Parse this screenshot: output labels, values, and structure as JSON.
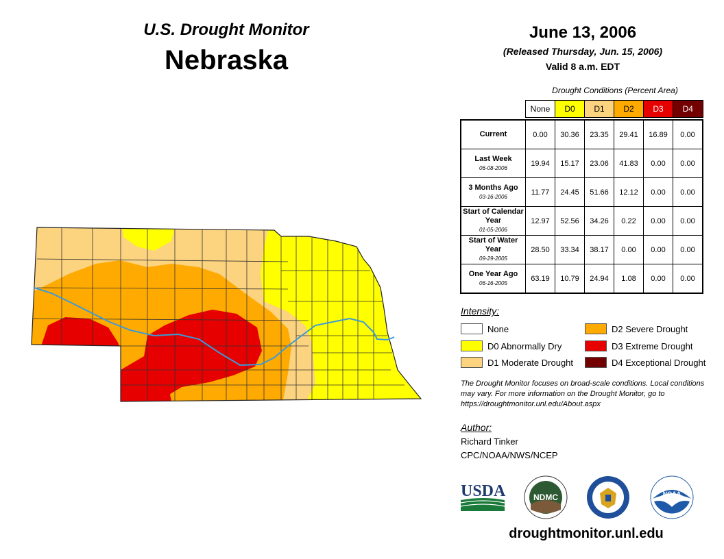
{
  "header": {
    "program_title": "U.S. Drought Monitor",
    "state": "Nebraska",
    "date": "June 13, 2006",
    "released": "(Released Thursday, Jun. 15, 2006)",
    "valid": "Valid 8 a.m. EDT"
  },
  "table": {
    "caption": "Drought Conditions (Percent Area)",
    "columns": [
      "None",
      "D0",
      "D1",
      "D2",
      "D3",
      "D4"
    ],
    "column_colors": [
      "#ffffff",
      "#ffff00",
      "#fcd37f",
      "#ffaa00",
      "#e60000",
      "#730000"
    ],
    "column_text_colors": [
      "#000000",
      "#000000",
      "#000000",
      "#000000",
      "#ffffff",
      "#ffffff"
    ],
    "rows": [
      {
        "label": "Current",
        "date": "",
        "values": [
          "0.00",
          "30.36",
          "23.35",
          "29.41",
          "16.89",
          "0.00"
        ]
      },
      {
        "label": "Last Week",
        "date": "06-08-2006",
        "values": [
          "19.94",
          "15.17",
          "23.06",
          "41.83",
          "0.00",
          "0.00"
        ]
      },
      {
        "label": "3 Months Ago",
        "date": "03-16-2006",
        "values": [
          "11.77",
          "24.45",
          "51.66",
          "12.12",
          "0.00",
          "0.00"
        ]
      },
      {
        "label": "Start of Calendar Year",
        "date": "01-05-2006",
        "values": [
          "12.97",
          "52.56",
          "34.26",
          "0.22",
          "0.00",
          "0.00"
        ]
      },
      {
        "label": "Start of Water Year",
        "date": "09-29-2005",
        "values": [
          "28.50",
          "33.34",
          "38.17",
          "0.00",
          "0.00",
          "0.00"
        ]
      },
      {
        "label": "One Year Ago",
        "date": "06-16-2005",
        "values": [
          "63.19",
          "10.79",
          "24.94",
          "1.08",
          "0.00",
          "0.00"
        ]
      }
    ]
  },
  "legend": {
    "title": "Intensity:",
    "items": [
      {
        "label": "None",
        "color": "#ffffff"
      },
      {
        "label": "D0 Abnormally Dry",
        "color": "#ffff00"
      },
      {
        "label": "D1 Moderate Drought",
        "color": "#fcd37f"
      },
      {
        "label": "D2 Severe Drought",
        "color": "#ffaa00"
      },
      {
        "label": "D3 Extreme Drought",
        "color": "#e60000"
      },
      {
        "label": "D4 Exceptional Drought",
        "color": "#730000"
      }
    ]
  },
  "disclaimer": "The Drought Monitor focuses on broad-scale conditions. Local conditions may vary. For more information on the Drought Monitor, go to https://droughtmonitor.unl.edu/About.aspx",
  "author": {
    "label": "Author:",
    "name": "Richard Tinker",
    "org": "CPC/NOAA/NWS/NCEP"
  },
  "logos": {
    "usda": "USDA",
    "ndmc": "NDMC",
    "noaa": "NOAA"
  },
  "footer_url": "droughtmonitor.unl.edu",
  "colors": {
    "river": "#3a9ad9",
    "county_line": "#333333"
  }
}
